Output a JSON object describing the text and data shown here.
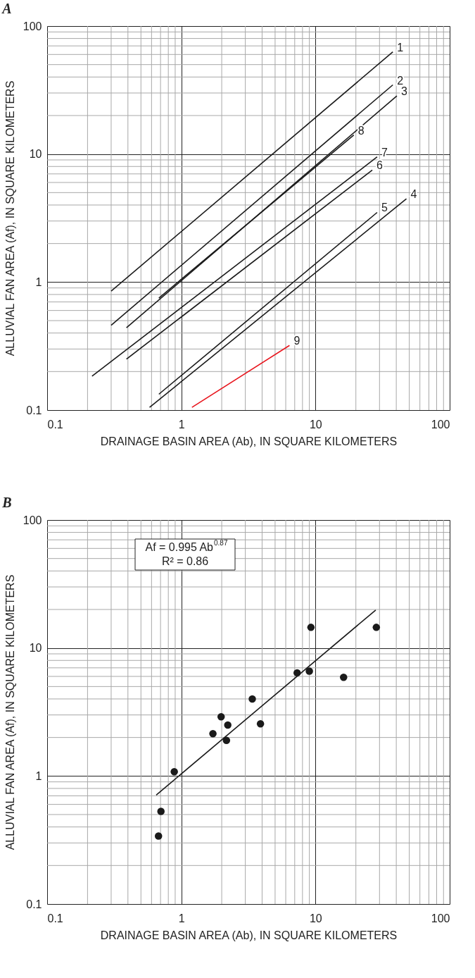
{
  "chart_data": [
    {
      "type": "line",
      "title": "A",
      "xlabel": "DRAINAGE BASIN AREA (Ab), IN SQUARE KILOMETERS",
      "ylabel": "ALLUVIAL FAN AREA (Af), IN SQUARE KILOMETERS",
      "log": "xy",
      "xlim": [
        0.1,
        100
      ],
      "ylim": [
        0.1,
        100
      ],
      "xticks": [
        0.1,
        1,
        10,
        100
      ],
      "yticks": [
        0.1,
        1,
        10,
        100
      ],
      "grid": true,
      "marker": "none",
      "line_style": "solid",
      "series": [
        {
          "name": "1",
          "color": "#1a1a1a",
          "x": [
            0.3,
            37.7
          ],
          "values": [
            0.85,
            62.8
          ]
        },
        {
          "name": "2",
          "color": "#1a1a1a",
          "x": [
            0.3,
            37.7
          ],
          "values": [
            0.46,
            34.7
          ]
        },
        {
          "name": "3",
          "color": "#1a1a1a",
          "x": [
            0.39,
            40.4
          ],
          "values": [
            0.44,
            28.5
          ]
        },
        {
          "name": "4",
          "color": "#1a1a1a",
          "x": [
            0.58,
            47.6
          ],
          "values": [
            0.105,
            4.47
          ]
        },
        {
          "name": "5",
          "color": "#1a1a1a",
          "x": [
            0.68,
            28.8
          ],
          "values": [
            0.133,
            3.5
          ]
        },
        {
          "name": "6",
          "color": "#1a1a1a",
          "x": [
            0.39,
            26.5
          ],
          "values": [
            0.25,
            7.5
          ]
        },
        {
          "name": "7",
          "color": "#1a1a1a",
          "x": [
            0.216,
            28.8
          ],
          "values": [
            0.184,
            9.5
          ]
        },
        {
          "name": "8",
          "color": "#1a1a1a",
          "x": [
            0.68,
            19.3
          ],
          "values": [
            0.75,
            14.1
          ]
        },
        {
          "name": "9",
          "color": "#e8141c",
          "x": [
            1.2,
            6.4
          ],
          "values": [
            0.105,
            0.32
          ]
        }
      ]
    },
    {
      "type": "scatter",
      "title": "B",
      "xlabel": "DRAINAGE BASIN AREA (Ab), IN SQUARE KILOMETERS",
      "ylabel": "ALLUVIAL FAN AREA (Af), IN SQUARE KILOMETERS",
      "log": "xy",
      "xlim": [
        0.1,
        100
      ],
      "ylim": [
        0.1,
        100
      ],
      "xticks": [
        0.1,
        1,
        10,
        100
      ],
      "yticks": [
        0.1,
        1,
        10,
        100
      ],
      "grid": true,
      "annotations": [
        "Af = 0.995 Ab$^{0.87}$",
        "R² = 0.86"
      ],
      "series": [
        {
          "type": "scatter",
          "marker": "circle",
          "color": "#1a1a1a",
          "x": [
            9.25,
            28.4,
            7.3,
            9.0,
            16.2,
            3.38,
            1.98,
            2.22,
            3.89,
            1.72,
            2.17,
            0.886,
            0.705,
            0.676
          ],
          "values": [
            14.5,
            14.5,
            6.4,
            6.6,
            5.9,
            4.0,
            2.9,
            2.5,
            2.56,
            2.14,
            1.9,
            1.08,
            0.53,
            0.34
          ]
        },
        {
          "type": "line",
          "marker": "none",
          "line_style": "solid",
          "color": "#1a1a1a",
          "x": [
            0.65,
            28.1
          ],
          "values": [
            0.71,
            19.8
          ]
        }
      ]
    }
  ]
}
